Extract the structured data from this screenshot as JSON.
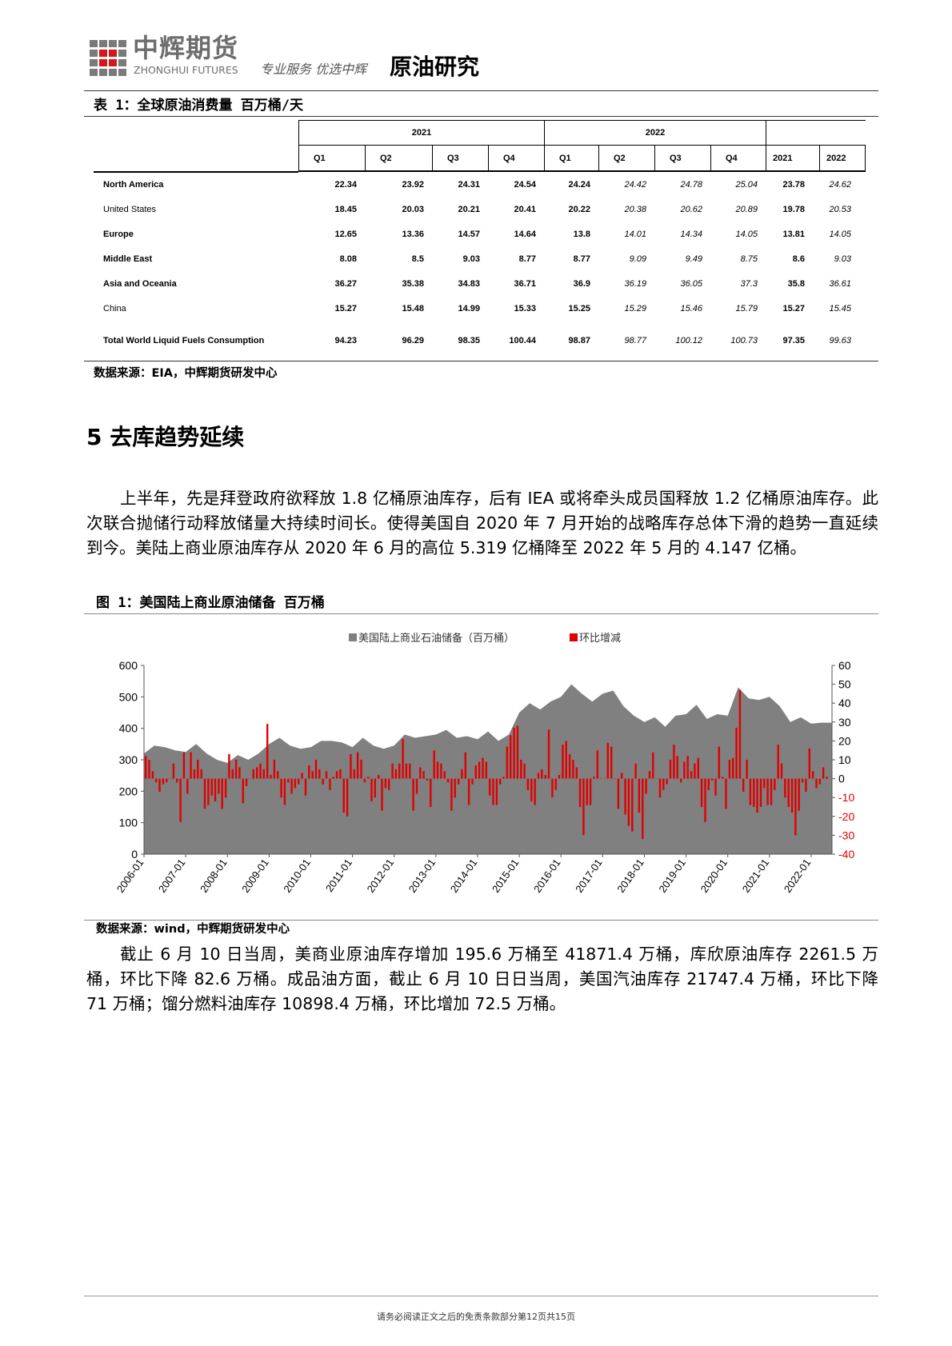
{
  "header": {
    "logo_cn": "中辉期货",
    "logo_en": "ZHONGHUI FUTURES",
    "slogan": "专业服务 优选中辉",
    "report_title": "原油研究"
  },
  "table": {
    "caption": "表 1：全球原油消费量 百万桶/天",
    "year_groups": [
      "2021",
      "2022",
      ""
    ],
    "columns": [
      "Q1",
      "Q2",
      "Q3",
      "Q4",
      "Q1",
      "Q2",
      "Q3",
      "Q4",
      "2021",
      "2022"
    ],
    "rows": [
      {
        "label": "North America",
        "bold": true,
        "values": [
          "22.34",
          "23.92",
          "24.31",
          "24.54",
          "24.24",
          "24.42",
          "24.78",
          "25.04",
          "23.78",
          "24.62"
        ]
      },
      {
        "label": "United States",
        "bold": false,
        "values": [
          "18.45",
          "20.03",
          "20.21",
          "20.41",
          "20.22",
          "20.38",
          "20.62",
          "20.89",
          "19.78",
          "20.53"
        ]
      },
      {
        "label": "Europe",
        "bold": true,
        "values": [
          "12.65",
          "13.36",
          "14.57",
          "14.64",
          "13.8",
          "14.01",
          "14.34",
          "14.05",
          "13.81",
          "14.05"
        ]
      },
      {
        "label": "Middle East",
        "bold": true,
        "values": [
          "8.08",
          "8.5",
          "9.03",
          "8.77",
          "8.77",
          "9.09",
          "9.49",
          "8.75",
          "8.6",
          "9.03"
        ]
      },
      {
        "label": "Asia and Oceania",
        "bold": true,
        "values": [
          "36.27",
          "35.38",
          "34.83",
          "36.71",
          "36.9",
          "36.19",
          "36.05",
          "37.3",
          "35.8",
          "36.61"
        ]
      },
      {
        "label": "China",
        "bold": false,
        "values": [
          "15.27",
          "15.48",
          "14.99",
          "15.33",
          "15.25",
          "15.29",
          "15.46",
          "15.79",
          "15.27",
          "15.45"
        ]
      },
      {
        "label": "Total World Liquid Fuels Consumption",
        "bold": true,
        "values": [
          "94.23",
          "96.29",
          "98.35",
          "100.44",
          "98.87",
          "98.77",
          "100.12",
          "100.73",
          "97.35",
          "99.63"
        ]
      }
    ],
    "source": "数据来源：EIA，中辉期货研发中心"
  },
  "section": {
    "title": "5 去库趋势延续",
    "paragraph": "上半年，先是拜登政府欲释放 1.8 亿桶原油库存，后有 IEA 或将牵头成员国释放 1.2 亿桶原油库存。此次联合抛储行动释放储量大持续时间长。使得美国自 2020 年 7 月开始的战略库存总体下滑的趋势一直延续到今。美陆上商业原油库存从 2020 年 6 月的高位 5.319 亿桶降至 2022 年 5 月的 4.147 亿桶。"
  },
  "figure": {
    "caption": "图 1：美国陆上商业原油储备 百万桶",
    "source": "数据来源：wind，中辉期货研发中心"
  },
  "chart_data": {
    "type": "area+bar",
    "legend": [
      "美国陆上商业石油储备（百万桶）",
      "环比增减"
    ],
    "legend_placement": "top",
    "colors": {
      "stock": "#808080",
      "change": "#e00000"
    },
    "x_ticks": [
      "2006-01",
      "2007-01",
      "2008-01",
      "2009-01",
      "2010-01",
      "2011-01",
      "2012-01",
      "2013-01",
      "2014-01",
      "2015-01",
      "2016-01",
      "2017-01",
      "2018-01",
      "2019-01",
      "2020-01",
      "2021-01",
      "2022-01"
    ],
    "y_left": {
      "range": [
        0,
        600
      ],
      "ticks": [
        "0",
        "100",
        "200",
        "300",
        "400",
        "500",
        "600"
      ]
    },
    "y_right": {
      "range": [
        -40,
        60
      ],
      "ticks": [
        "-40",
        "-30",
        "-20",
        "-10",
        "0",
        "10",
        "20",
        "30",
        "40",
        "50",
        "60"
      ]
    },
    "stock": {
      "start": "2006-01",
      "step_months": 3,
      "values": [
        320,
        345,
        340,
        330,
        325,
        350,
        320,
        300,
        290,
        315,
        300,
        320,
        350,
        370,
        345,
        335,
        340,
        360,
        360,
        355,
        340,
        370,
        345,
        335,
        345,
        380,
        370,
        375,
        380,
        395,
        370,
        375,
        365,
        390,
        360,
        380,
        450,
        480,
        460,
        485,
        500,
        540,
        510,
        485,
        510,
        520,
        470,
        440,
        420,
        435,
        405,
        440,
        445,
        475,
        430,
        445,
        440,
        530,
        495,
        490,
        500,
        470,
        420,
        435,
        415,
        418
      ]
    },
    "change": {
      "start": "2006-01",
      "step_months": 1,
      "values": [
        12,
        10,
        4,
        -2,
        -7,
        -3,
        -2,
        0,
        8,
        -2,
        -23,
        14,
        -8,
        14,
        5,
        10,
        5,
        -16,
        -14,
        -9,
        -12,
        -8,
        -16,
        -10,
        13,
        5,
        10,
        6,
        -13,
        -4,
        0,
        5,
        6,
        8,
        5,
        29,
        2,
        10,
        4,
        -10,
        -14,
        -2,
        -8,
        -5,
        -3,
        3,
        -9,
        7,
        4,
        10,
        5,
        -3,
        4,
        -6,
        1,
        4,
        5,
        -18,
        -20,
        13,
        5,
        14,
        10,
        -2,
        1,
        -12,
        -10,
        2,
        -17,
        -5,
        -6,
        8,
        5,
        8,
        21,
        8,
        8,
        -17,
        -8,
        6,
        4,
        -1,
        -15,
        15,
        9,
        8,
        4,
        -2,
        -17,
        -10,
        -3,
        5,
        14,
        -14,
        -3,
        7,
        9,
        11,
        9,
        -9,
        -14,
        -14,
        -3,
        1,
        17,
        23,
        27,
        28,
        10,
        8,
        -6,
        -12,
        -14,
        3,
        5,
        2,
        26,
        -10,
        -6,
        2,
        18,
        20,
        13,
        10,
        6,
        -15,
        -30,
        -14,
        -14,
        1,
        15,
        0,
        0,
        19,
        17,
        0,
        -16,
        3,
        -19,
        -25,
        -28,
        8,
        -18,
        -32,
        -8,
        4,
        14,
        0,
        -10,
        -6,
        -3,
        10,
        18,
        12,
        -2,
        9,
        12,
        4,
        8,
        11,
        -15,
        -23,
        -6,
        -1,
        -9,
        17,
        1,
        -16,
        10,
        11,
        27,
        47,
        -7,
        10,
        -14,
        -15,
        -18,
        -15,
        -5,
        -14,
        -14,
        -6,
        18,
        8,
        -10,
        -15,
        -18,
        -30,
        -17,
        -2,
        -7,
        16,
        4,
        -5,
        -3,
        6,
        1
      ]
    }
  },
  "closing_paragraph": "截止 6 月 10 日当周，美商业原油库存增加 195.6 万桶至 41871.4 万桶，库欣原油库存 2261.5 万桶，环比下降 82.6 万桶。成品油方面，截止 6 月 10 日日当周，美国汽油库存 21747.4 万桶，环比下降 71 万桶；馏分燃料油库存 10898.4 万桶，环比增加 72.5 万桶。",
  "footer": "请务必阅读正文之后的免责条款部分第12页共15页"
}
